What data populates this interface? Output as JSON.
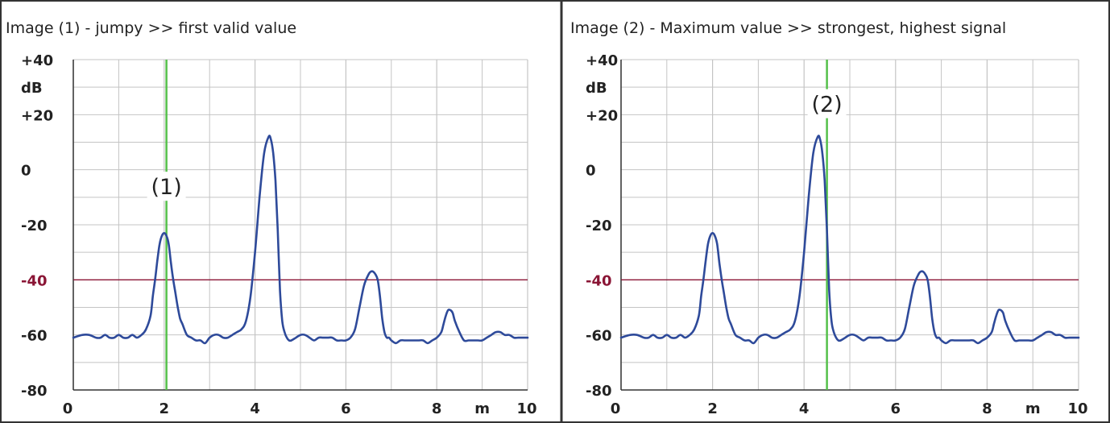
{
  "colors": {
    "curve": "#2e4a9a",
    "marker": "#55c04a",
    "threshold": "#8a1535",
    "threshold_label": "#8a1535",
    "grid": "#c4c4c4",
    "border": "#333333",
    "text": "#222222"
  },
  "chart_data": [
    {
      "type": "line",
      "title": "Image (1) - jumpy >> first valid value",
      "xlim": [
        0,
        10
      ],
      "ylim": [
        -80,
        40
      ],
      "x_unit": "m",
      "y_unit": "dB",
      "x_ticks": [
        "0",
        "2",
        "4",
        "6",
        "8",
        "10"
      ],
      "y_ticks": [
        "+40",
        "+20",
        "0",
        "-20",
        "-40",
        "-60",
        "-80"
      ],
      "threshold": {
        "y": -40,
        "label": "-40"
      },
      "marker": {
        "x": 2.05,
        "label": "(1)",
        "label_y": -6
      },
      "grid": true,
      "series": [
        {
          "x": [
            0,
            0.2,
            0.35,
            0.5,
            0.6,
            0.7,
            0.8,
            0.9,
            1.0,
            1.1,
            1.2,
            1.3,
            1.4,
            1.5,
            1.6,
            1.7,
            1.75,
            1.8,
            1.85,
            1.9,
            1.95,
            2.0,
            2.05,
            2.1,
            2.15,
            2.2,
            2.25,
            2.3,
            2.35,
            2.4,
            2.5,
            2.6,
            2.7,
            2.8,
            2.9,
            3.0,
            3.1,
            3.2,
            3.3,
            3.4,
            3.5,
            3.6,
            3.7,
            3.8,
            3.9,
            4.0,
            4.1,
            4.2,
            4.3,
            4.35,
            4.4,
            4.45,
            4.5,
            4.55,
            4.6,
            4.65,
            4.7,
            4.75,
            4.8,
            4.9,
            5.0,
            5.1,
            5.2,
            5.3,
            5.4,
            5.5,
            5.6,
            5.7,
            5.8,
            5.9,
            6.0,
            6.1,
            6.2,
            6.3,
            6.4,
            6.5,
            6.55,
            6.6,
            6.65,
            6.7,
            6.75,
            6.8,
            6.85,
            6.9,
            6.95,
            7.0,
            7.1,
            7.2,
            7.3,
            7.4,
            7.5,
            7.6,
            7.7,
            7.8,
            7.9,
            8.0,
            8.1,
            8.15,
            8.2,
            8.25,
            8.3,
            8.35,
            8.4,
            8.5,
            8.6,
            8.7,
            8.8,
            8.9,
            9.0,
            9.1,
            9.2,
            9.3,
            9.4,
            9.5,
            9.6,
            9.7,
            9.8,
            10.0
          ],
          "y": [
            -61,
            -60,
            -60,
            -61,
            -61,
            -60,
            -61,
            -61,
            -60,
            -61,
            -61,
            -60,
            -61,
            -60,
            -58,
            -53,
            -46,
            -40,
            -33,
            -27,
            -24,
            -23,
            -24,
            -27,
            -34,
            -40,
            -45,
            -50,
            -54,
            -56,
            -60,
            -61,
            -62,
            -62,
            -63,
            -61,
            -60,
            -60,
            -61,
            -61,
            -60,
            -59,
            -58,
            -55,
            -46,
            -30,
            -10,
            6,
            12,
            11,
            6,
            -4,
            -22,
            -44,
            -55,
            -59,
            -61,
            -62,
            -62,
            -61,
            -60,
            -60,
            -61,
            -62,
            -61,
            -61,
            -61,
            -61,
            -62,
            -62,
            -62,
            -61,
            -58,
            -50,
            -42,
            -38,
            -37,
            -37,
            -38,
            -40,
            -46,
            -54,
            -59,
            -61,
            -61,
            -62,
            -63,
            -62,
            -62,
            -62,
            -62,
            -62,
            -62,
            -63,
            -62,
            -61,
            -59,
            -56,
            -53,
            -51,
            -51,
            -52,
            -55,
            -59,
            -62,
            -62,
            -62,
            -62,
            -62,
            -61,
            -60,
            -59,
            -59,
            -60,
            -60,
            -61,
            -61,
            -61
          ]
        }
      ]
    },
    {
      "type": "line",
      "title": "Image (2) - Maximum value >> strongest, highest signal",
      "xlim": [
        0,
        10
      ],
      "ylim": [
        -80,
        40
      ],
      "x_unit": "m",
      "y_unit": "dB",
      "x_ticks": [
        "0",
        "2",
        "4",
        "6",
        "8",
        "10"
      ],
      "y_ticks": [
        "+40",
        "+20",
        "0",
        "-20",
        "-40",
        "-60",
        "-80"
      ],
      "threshold": {
        "y": -40,
        "label": "-40"
      },
      "marker": {
        "x": 4.5,
        "label": "(2)",
        "label_y": 24
      },
      "grid": true,
      "series": [
        {
          "x": [
            0,
            0.2,
            0.35,
            0.5,
            0.6,
            0.7,
            0.8,
            0.9,
            1.0,
            1.1,
            1.2,
            1.3,
            1.4,
            1.5,
            1.6,
            1.7,
            1.75,
            1.8,
            1.85,
            1.9,
            1.95,
            2.0,
            2.05,
            2.1,
            2.15,
            2.2,
            2.25,
            2.3,
            2.35,
            2.4,
            2.5,
            2.6,
            2.7,
            2.8,
            2.9,
            3.0,
            3.1,
            3.2,
            3.3,
            3.4,
            3.5,
            3.6,
            3.7,
            3.8,
            3.9,
            4.0,
            4.1,
            4.2,
            4.3,
            4.35,
            4.4,
            4.45,
            4.5,
            4.55,
            4.6,
            4.65,
            4.7,
            4.75,
            4.8,
            4.9,
            5.0,
            5.1,
            5.2,
            5.3,
            5.4,
            5.5,
            5.6,
            5.7,
            5.8,
            5.9,
            6.0,
            6.1,
            6.2,
            6.3,
            6.4,
            6.5,
            6.55,
            6.6,
            6.65,
            6.7,
            6.75,
            6.8,
            6.85,
            6.9,
            6.95,
            7.0,
            7.1,
            7.2,
            7.3,
            7.4,
            7.5,
            7.6,
            7.7,
            7.8,
            7.9,
            8.0,
            8.1,
            8.15,
            8.2,
            8.25,
            8.3,
            8.35,
            8.4,
            8.5,
            8.6,
            8.7,
            8.8,
            8.9,
            9.0,
            9.1,
            9.2,
            9.3,
            9.4,
            9.5,
            9.6,
            9.7,
            9.8,
            10.0
          ],
          "y": [
            -61,
            -60,
            -60,
            -61,
            -61,
            -60,
            -61,
            -61,
            -60,
            -61,
            -61,
            -60,
            -61,
            -60,
            -58,
            -53,
            -46,
            -40,
            -33,
            -27,
            -24,
            -23,
            -24,
            -27,
            -34,
            -40,
            -45,
            -50,
            -54,
            -56,
            -60,
            -61,
            -62,
            -62,
            -63,
            -61,
            -60,
            -60,
            -61,
            -61,
            -60,
            -59,
            -58,
            -55,
            -46,
            -30,
            -10,
            6,
            12,
            11,
            6,
            -4,
            -22,
            -44,
            -55,
            -59,
            -61,
            -62,
            -62,
            -61,
            -60,
            -60,
            -61,
            -62,
            -61,
            -61,
            -61,
            -61,
            -62,
            -62,
            -62,
            -61,
            -58,
            -50,
            -42,
            -38,
            -37,
            -37,
            -38,
            -40,
            -46,
            -54,
            -59,
            -61,
            -61,
            -62,
            -63,
            -62,
            -62,
            -62,
            -62,
            -62,
            -62,
            -63,
            -62,
            -61,
            -59,
            -56,
            -53,
            -51,
            -51,
            -52,
            -55,
            -59,
            -62,
            -62,
            -62,
            -62,
            -62,
            -61,
            -60,
            -59,
            -59,
            -60,
            -60,
            -61,
            -61,
            -61
          ]
        }
      ]
    }
  ]
}
